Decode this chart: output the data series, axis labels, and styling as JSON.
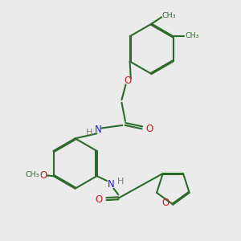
{
  "bg_color": "#ebebeb",
  "bond_color": "#2d6b2d",
  "N_color": "#2020cc",
  "O_color": "#cc1a1a",
  "H_color": "#7a7a7a",
  "line_width": 1.5,
  "dbo": 0.05,
  "xlim": [
    0,
    10
  ],
  "ylim": [
    0,
    10
  ]
}
